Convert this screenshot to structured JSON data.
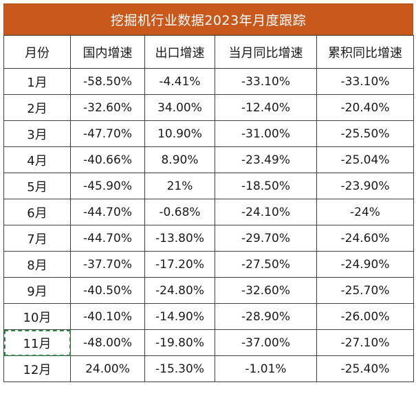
{
  "title": "挖掘机行业数据2023年月度跟踪",
  "columns": [
    "月份",
    "国内增速",
    "出口增速",
    "当月同比增速",
    "累积同比增速"
  ],
  "rows": [
    [
      "1月",
      "-58.50%",
      "-4.41%",
      "-33.10%",
      "-33.10%"
    ],
    [
      "2月",
      "-32.60%",
      "34.00%",
      "-12.40%",
      "-20.40%"
    ],
    [
      "3月",
      "-47.70%",
      "10.90%",
      "-31.00%",
      "-25.50%"
    ],
    [
      "4月",
      "-40.66%",
      "8.90%",
      "-23.49%",
      "-25.04%"
    ],
    [
      "5月",
      "-45.90%",
      "21%",
      "-18.50%",
      "-23.90%"
    ],
    [
      "6月",
      "-44.70%",
      "-0.68%",
      "-24.10%",
      "-24%"
    ],
    [
      "7月",
      "-44.70%",
      "-13.80%",
      "-29.70%",
      "-24.60%"
    ],
    [
      "8月",
      "-37.70%",
      "-17.20%",
      "-27.50%",
      "-24.90%"
    ],
    [
      "9月",
      "-40.50%",
      "-24.80%",
      "-32.60%",
      "-25.70%"
    ],
    [
      "10月",
      "-40.10%",
      "-14.90%",
      "-28.90%",
      "-26.00%"
    ],
    [
      "11月",
      "-48.00%",
      "-19.80%",
      "-37.00%",
      "-27.10%"
    ],
    [
      "12月",
      "24.00%",
      "-15.30%",
      "-1.01%",
      "-25.40%"
    ]
  ],
  "selected_cell": "11月",
  "colors": {
    "title_bg": "#c8581c",
    "title_text": "#ffffff",
    "grid": "#404040",
    "selection": "#2e8b47"
  }
}
